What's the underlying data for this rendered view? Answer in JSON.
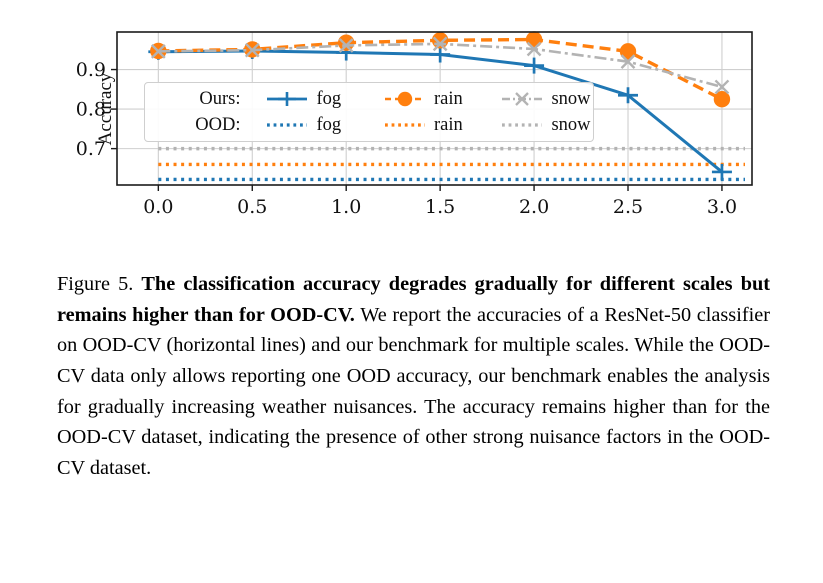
{
  "figure_label": "Figure 5.",
  "chart_data": {
    "type": "line",
    "title": "",
    "xlabel": "",
    "ylabel": "Accuracy",
    "x": [
      0.0,
      0.5,
      1.0,
      1.5,
      2.0,
      2.5,
      3.0
    ],
    "xtick_labels": [
      "0.0",
      "0.5",
      "1.0",
      "1.5",
      "2.0",
      "2.5",
      "3.0"
    ],
    "yticks": [
      0.7,
      0.8,
      0.9
    ],
    "ytick_labels": [
      "0.7",
      "0.8",
      "0.9"
    ],
    "xlim": [
      -0.22,
      3.16
    ],
    "ylim": [
      0.608,
      0.995
    ],
    "grid": true,
    "legend_position": "inside upper-left, two rows",
    "series": [
      {
        "name": "Ours: fog",
        "group": "Ours",
        "key": "fog",
        "style": "solid",
        "marker": "plus",
        "values": [
          0.945,
          0.947,
          0.943,
          0.938,
          0.91,
          0.835,
          0.641
        ]
      },
      {
        "name": "Ours: rain",
        "group": "Ours",
        "key": "rain",
        "style": "dashed",
        "marker": "circle",
        "values": [
          0.947,
          0.951,
          0.968,
          0.974,
          0.976,
          0.946,
          0.825
        ]
      },
      {
        "name": "Ours: snow",
        "group": "Ours",
        "key": "snow",
        "style": "dashdot",
        "marker": "x",
        "values": [
          0.946,
          0.949,
          0.961,
          0.965,
          0.952,
          0.92,
          0.856
        ]
      }
    ],
    "ood_lines": [
      {
        "name": "OOD: fog",
        "key": "fog",
        "style": "dotted",
        "value": 0.622
      },
      {
        "name": "OOD: rain",
        "key": "rain",
        "style": "dotted",
        "value": 0.66
      },
      {
        "name": "OOD: snow",
        "key": "snow",
        "style": "dotted",
        "value": 0.7
      }
    ]
  },
  "colors": {
    "fog": "#1f77b4",
    "rain": "#ff7f0e",
    "snow": "#b3b3b3",
    "grid": "#cfcfcf",
    "axis": "#1a1a1a",
    "tick_text": "#111111"
  },
  "legend": {
    "rows": [
      {
        "label": "Ours:",
        "entries": [
          {
            "label": "fog"
          },
          {
            "label": "rain"
          },
          {
            "label": "snow"
          }
        ]
      },
      {
        "label": "OOD:",
        "entries": [
          {
            "label": "fog"
          },
          {
            "label": "rain"
          },
          {
            "label": "snow"
          }
        ]
      }
    ]
  },
  "caption": {
    "prefix": "Figure 5.",
    "bold": "The classification accuracy degrades gradually for different scales but remains higher than for OOD-CV.",
    "rest": "We report the accuracies of a ResNet-50 classifier on OOD-CV (horizontal lines) and our benchmark for multiple scales. While the OOD-CV data only allows reporting one OOD accuracy, our benchmark enables the analysis for gradually increasing weather nuisances. The accuracy remains higher than for the OOD-CV dataset, indicating the presence of other strong nuisance factors in the OOD-CV dataset."
  }
}
